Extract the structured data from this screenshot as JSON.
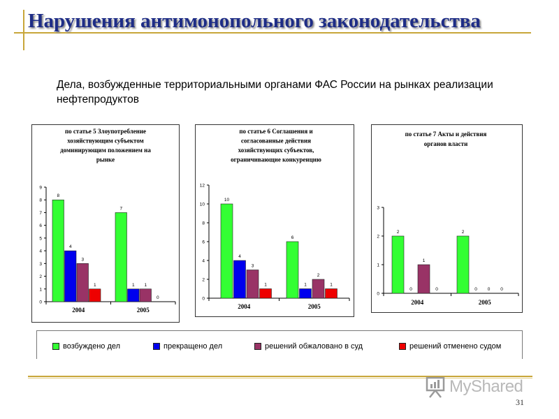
{
  "title": "Нарушения антимонопольного законодательства",
  "subtitle": "Дела, возбужденные территориальными органами ФАС России на рынках реализации нефтепродуктов",
  "legend": [
    {
      "label": "возбуждено дел",
      "color": "#33ff33"
    },
    {
      "label": "прекращено дел",
      "color": "#0000ee"
    },
    {
      "label": "решений обжаловано в суд",
      "color": "#993366"
    },
    {
      "label": "решений отменено судом",
      "color": "#ee0000"
    }
  ],
  "logo": {
    "text": "MyShared",
    "icon": "presentation-board-icon"
  },
  "page_number": "31",
  "chart_data": [
    {
      "type": "bar",
      "title": [
        "по статье 5 Злоупотребление",
        "хозяйствующим субъектом",
        "доминирующим положением на",
        "рынке"
      ],
      "categories": [
        "2004",
        "2005"
      ],
      "series": [
        {
          "name": "возбуждено дел",
          "values": [
            8,
            7
          ]
        },
        {
          "name": "прекращено дел",
          "values": [
            4,
            1
          ]
        },
        {
          "name": "решений обжаловано в суд",
          "values": [
            3,
            1
          ]
        },
        {
          "name": "решений отменено судом",
          "values": [
            1,
            0
          ]
        }
      ],
      "ylim": [
        0,
        9
      ],
      "yticks": [
        0,
        1,
        2,
        3,
        4,
        5,
        6,
        7,
        8,
        9
      ],
      "grid": false
    },
    {
      "type": "bar",
      "title": [
        "по статье 6 Соглашения и",
        "согласованные действия",
        "хозяйствующих субъектов,",
        "ограничивающие конкуренцию"
      ],
      "categories": [
        "2004",
        "2005"
      ],
      "series": [
        {
          "name": "возбуждено дел",
          "values": [
            10,
            6
          ]
        },
        {
          "name": "прекращено дел",
          "values": [
            4,
            1
          ]
        },
        {
          "name": "решений обжаловано в суд",
          "values": [
            3,
            2
          ]
        },
        {
          "name": "решений отменено судом",
          "values": [
            1,
            1
          ]
        }
      ],
      "ylim": [
        0,
        12
      ],
      "yticks": [
        0,
        2,
        4,
        6,
        8,
        10,
        12
      ],
      "grid": false
    },
    {
      "type": "bar",
      "title": [
        "по статье 7 Акты и действия",
        "органов власти"
      ],
      "categories": [
        "2004",
        "2005"
      ],
      "series": [
        {
          "name": "возбуждено дел",
          "values": [
            2,
            2
          ]
        },
        {
          "name": "прекращено дел",
          "values": [
            0,
            0
          ]
        },
        {
          "name": "решений обжаловано в суд",
          "values": [
            1,
            0
          ]
        },
        {
          "name": "решений отменено судом",
          "values": [
            0,
            0
          ]
        }
      ],
      "ylim": [
        0,
        3
      ],
      "yticks": [
        0,
        1,
        2,
        3
      ],
      "grid": false
    }
  ]
}
